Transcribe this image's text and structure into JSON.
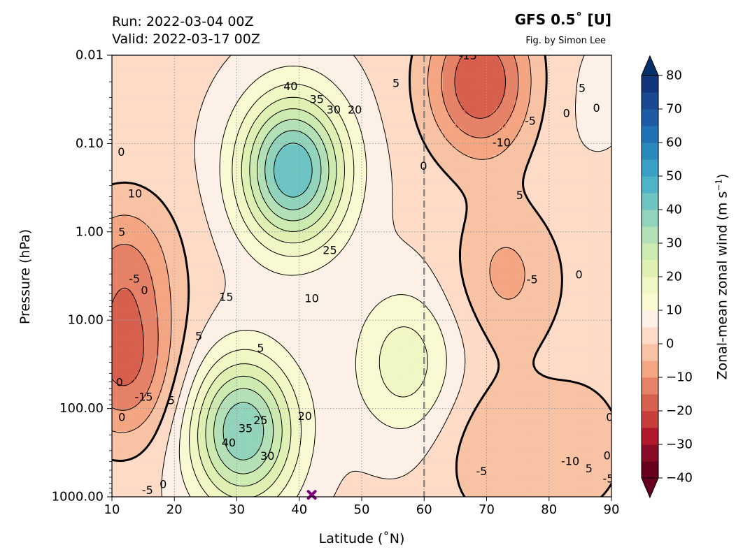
{
  "header": {
    "run": "Run: 2022-03-04 00Z",
    "valid": "Valid: 2022-03-17 00Z",
    "model": "GFS 0.5$^\\circ$ [U]",
    "model_display": "GFS 0.5˚  [U]",
    "credit": "Fig. by Simon Lee"
  },
  "chart_data": {
    "type": "heatmap",
    "subtype": "filled-contour",
    "xlabel": "Latitude ($^\\circ$N)",
    "xlabel_display": "Latitude (˚N)",
    "ylabel": "Pressure (hPa)",
    "xlim": [
      10,
      90
    ],
    "ylim": [
      1000,
      0.01
    ],
    "yscale": "log",
    "x_ticks": [
      10,
      20,
      30,
      40,
      50,
      60,
      70,
      80,
      90
    ],
    "y_ticks": [
      0.01,
      0.1,
      1,
      10,
      100,
      1000
    ],
    "y_tick_labels": [
      "0.01",
      "0.10",
      "1.00",
      "10.00",
      "100.00",
      "1000.00"
    ],
    "grid": true,
    "reference_line": {
      "lat": 60,
      "style": "dashed",
      "color": "#888888"
    },
    "marker": {
      "lat": 42,
      "pressure": 950,
      "symbol": "x",
      "color": "#800080"
    },
    "colorbar": {
      "label": "Zonal-mean zonal wind (m s",
      "label_sup": "−1",
      "label_end": ")",
      "ticks": [
        80,
        70,
        60,
        50,
        40,
        30,
        20,
        10,
        0,
        -10,
        -20,
        -30,
        -40
      ],
      "tick_labels": [
        "80",
        "70",
        "60",
        "50",
        "40",
        "30",
        "20",
        "10",
        "0",
        "−10",
        "−20",
        "−30",
        "−40"
      ],
      "extend": "both",
      "levels": [
        -40,
        -35,
        -30,
        -25,
        -20,
        -15,
        -10,
        -5,
        0,
        5,
        10,
        15,
        20,
        25,
        30,
        35,
        40,
        45,
        50,
        55,
        60,
        65,
        70,
        75,
        80
      ],
      "colors": [
        "#67001f",
        "#8a0b25",
        "#b2182b",
        "#c73d3a",
        "#d6604d",
        "#e58267",
        "#f4a582",
        "#f8c2a4",
        "#fddbc7",
        "#fdf0e6",
        "#fafad2",
        "#f0f6c4",
        "#dff0b2",
        "#cdebb0",
        "#b4e0b7",
        "#92d3bb",
        "#6ec4c2",
        "#4fb3c8",
        "#3a9fc4",
        "#2a88bb",
        "#2171b5",
        "#1d5ca4",
        "#1a4891",
        "#12357b",
        "#0a2563"
      ],
      "under_color": "#67001f",
      "over_color": "#08306b"
    },
    "features": [
      {
        "lat": 39,
        "pressure": 0.2,
        "value": 45
      },
      {
        "lat": 31,
        "pressure": 180,
        "value": 40
      },
      {
        "lat": 69,
        "pressure": 0.02,
        "value": -20
      },
      {
        "lat": 12,
        "pressure": 2.5,
        "value": -10
      },
      {
        "lat": 12,
        "pressure": 35,
        "value": -15
      },
      {
        "lat": 73,
        "pressure": 3,
        "value": -6
      },
      {
        "lat": 71,
        "pressure": 300,
        "value": -4
      },
      {
        "lat": 85,
        "pressure": 280,
        "value": -3
      },
      {
        "lat": 45,
        "pressure": 20,
        "value": 4
      },
      {
        "lat": 57,
        "pressure": 30,
        "value": 18
      },
      {
        "lat": 86,
        "pressure": 0.03,
        "value": 6
      },
      {
        "lat": 86,
        "pressure": 5,
        "value": 3
      }
    ],
    "contour_labels": [
      {
        "text": "40",
        "lat": 38.6,
        "pressure": 0.0225
      },
      {
        "text": "35",
        "lat": 42.8,
        "pressure": 0.0315
      },
      {
        "text": "30",
        "lat": 45.5,
        "pressure": 0.0415
      },
      {
        "text": "20",
        "lat": 48.9,
        "pressure": 0.0415
      },
      {
        "text": "5",
        "lat": 55.5,
        "pressure": 0.0208
      },
      {
        "text": "-15",
        "lat": 67.0,
        "pressure": 0.0101
      },
      {
        "text": "-10",
        "lat": 72.4,
        "pressure": 0.0976
      },
      {
        "text": "-5",
        "lat": 77.0,
        "pressure": 0.0556
      },
      {
        "text": "5",
        "lat": 85.3,
        "pressure": 0.0236
      },
      {
        "text": "0",
        "lat": 82.8,
        "pressure": 0.0452
      },
      {
        "text": "0",
        "lat": 87.6,
        "pressure": 0.0396
      },
      {
        "text": "0",
        "lat": 59.9,
        "pressure": 0.18
      },
      {
        "text": "0",
        "lat": 11.5,
        "pressure": 0.125
      },
      {
        "text": "10",
        "lat": 13.7,
        "pressure": 0.37
      },
      {
        "text": "5",
        "lat": 11.6,
        "pressure": 1.0
      },
      {
        "text": "5",
        "lat": 75.3,
        "pressure": 0.385
      },
      {
        "text": "25",
        "lat": 44.9,
        "pressure": 1.61
      },
      {
        "text": "15",
        "lat": 28.3,
        "pressure": 5.46
      },
      {
        "text": "10",
        "lat": 42.0,
        "pressure": 5.66
      },
      {
        "text": "-5",
        "lat": 13.6,
        "pressure": 3.4
      },
      {
        "text": "0",
        "lat": 15.2,
        "pressure": 4.6
      },
      {
        "text": "-5",
        "lat": 77.3,
        "pressure": 3.46
      },
      {
        "text": "0",
        "lat": 84.8,
        "pressure": 3.04
      },
      {
        "text": "5",
        "lat": 23.9,
        "pressure": 15.2
      },
      {
        "text": "5",
        "lat": 33.8,
        "pressure": 20.6
      },
      {
        "text": "0",
        "lat": 11.2,
        "pressure": 50.3
      },
      {
        "text": "-15",
        "lat": 15.1,
        "pressure": 74.0
      },
      {
        "text": "5",
        "lat": 19.5,
        "pressure": 80.8
      },
      {
        "text": "0",
        "lat": 11.6,
        "pressure": 125
      },
      {
        "text": "25",
        "lat": 33.8,
        "pressure": 136
      },
      {
        "text": "20",
        "lat": 40.9,
        "pressure": 122
      },
      {
        "text": "35",
        "lat": 31.4,
        "pressure": 167
      },
      {
        "text": "40",
        "lat": 28.7,
        "pressure": 244
      },
      {
        "text": "30",
        "lat": 34.9,
        "pressure": 345
      },
      {
        "text": "-5",
        "lat": 69.2,
        "pressure": 512
      },
      {
        "text": "-10",
        "lat": 83.4,
        "pressure": 395
      },
      {
        "text": "0",
        "lat": 89.7,
        "pressure": 125
      },
      {
        "text": "0",
        "lat": 89.3,
        "pressure": 340
      },
      {
        "text": "5",
        "lat": 86.4,
        "pressure": 480
      },
      {
        "text": "-5",
        "lat": 89.5,
        "pressure": 620
      },
      {
        "text": "-5",
        "lat": 15.7,
        "pressure": 840
      },
      {
        "text": "0",
        "lat": 18.2,
        "pressure": 720
      }
    ]
  }
}
